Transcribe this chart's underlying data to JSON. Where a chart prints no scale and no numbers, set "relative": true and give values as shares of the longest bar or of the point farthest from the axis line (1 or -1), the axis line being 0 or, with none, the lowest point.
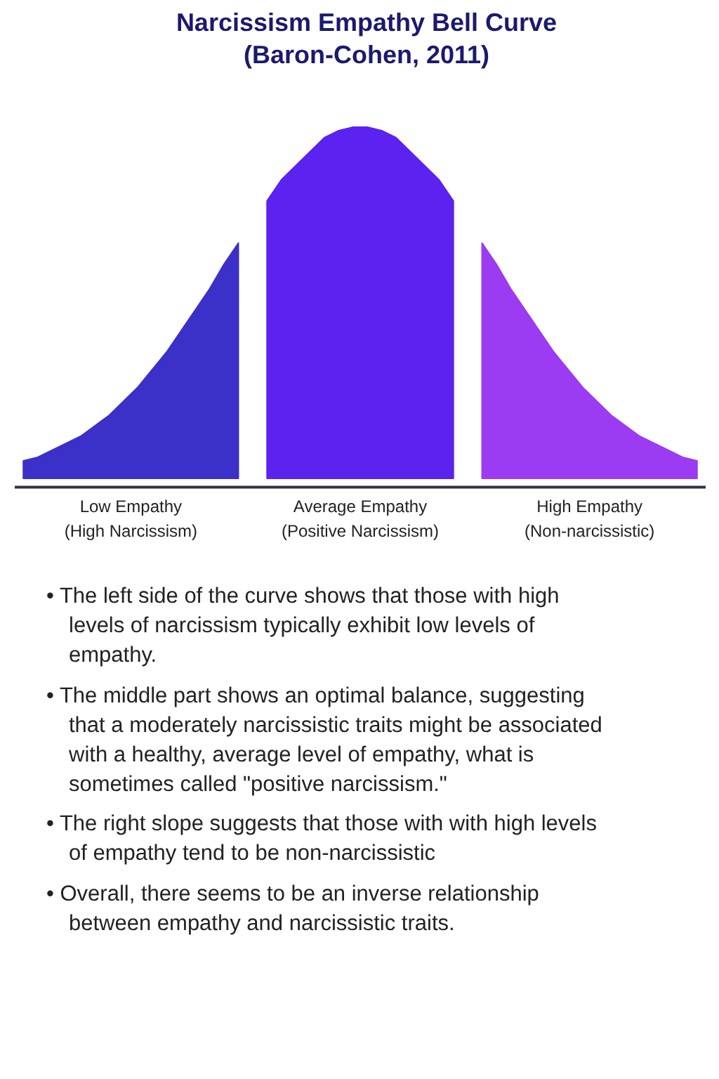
{
  "chart_data": {
    "type": "area",
    "title": "Narcissism Empathy Bell Curve\n(Baron-Cohen, 2011)",
    "relative": true,
    "categories": [
      null,
      null,
      null,
      null,
      null,
      null,
      null,
      null,
      null,
      null,
      null,
      null,
      null,
      null,
      null,
      null,
      null,
      null,
      null,
      null,
      null,
      null,
      null,
      null,
      null,
      null,
      null,
      null,
      null,
      null,
      null,
      null,
      null,
      null,
      null,
      null,
      null,
      null,
      null,
      null,
      null,
      null,
      null,
      null,
      null,
      null,
      null,
      null
    ],
    "series": [
      {
        "name": "Low Empathy\n(High Narcissism)",
        "color": "#3b30c8",
        "values": [
          0.05,
          0.06,
          0.08,
          0.1,
          0.12,
          0.15,
          0.18,
          0.22,
          0.26,
          0.31,
          0.36,
          0.42,
          0.48,
          0.54,
          0.61,
          0.67,
          null,
          null,
          null,
          null,
          null,
          null,
          null,
          null,
          null,
          null,
          null,
          null,
          null,
          null,
          null,
          null,
          null,
          null,
          null,
          null,
          null,
          null,
          null,
          null,
          null,
          null,
          null,
          null,
          null,
          null,
          null,
          null
        ]
      },
      {
        "name": "Average Empathy\n(Positive Narcissism)",
        "color": "#5b22f0",
        "values": [
          null,
          null,
          null,
          null,
          null,
          null,
          null,
          null,
          null,
          null,
          null,
          null,
          null,
          null,
          null,
          null,
          null,
          0.79,
          0.85,
          0.89,
          0.93,
          0.97,
          0.99,
          1.0,
          1.0,
          0.99,
          0.97,
          0.93,
          0.89,
          0.85,
          0.79,
          null,
          null,
          null,
          null,
          null,
          null,
          null,
          null,
          null,
          null,
          null,
          null,
          null,
          null,
          null,
          null,
          null
        ]
      },
      {
        "name": "High Empathy\n(Non-narcissistic)",
        "color": "#9b3bf2",
        "values": [
          null,
          null,
          null,
          null,
          null,
          null,
          null,
          null,
          null,
          null,
          null,
          null,
          null,
          null,
          null,
          null,
          null,
          null,
          null,
          null,
          null,
          null,
          null,
          null,
          null,
          null,
          null,
          null,
          null,
          null,
          null,
          null,
          0.67,
          0.61,
          0.54,
          0.48,
          0.42,
          0.36,
          0.31,
          0.26,
          0.22,
          0.18,
          0.15,
          0.12,
          0.1,
          0.08,
          0.06,
          0.05
        ]
      }
    ],
    "annotations": [
      "• The left side of the curve shows that those with high levels of narcissism typically exhibit low levels of empathy.",
      "• The middle part shows an optimal balance, suggesting that a moderately narcissistic traits might be associated with a healthy, average level of empathy, what is sometimes called \"positive narcissism.\"",
      "• The right slope suggests that those with with high levels of empathy tend to be non-narcissistic",
      "• Overall,  there seems to be an inverse relationship between empathy and narcissistic traits."
    ]
  }
}
